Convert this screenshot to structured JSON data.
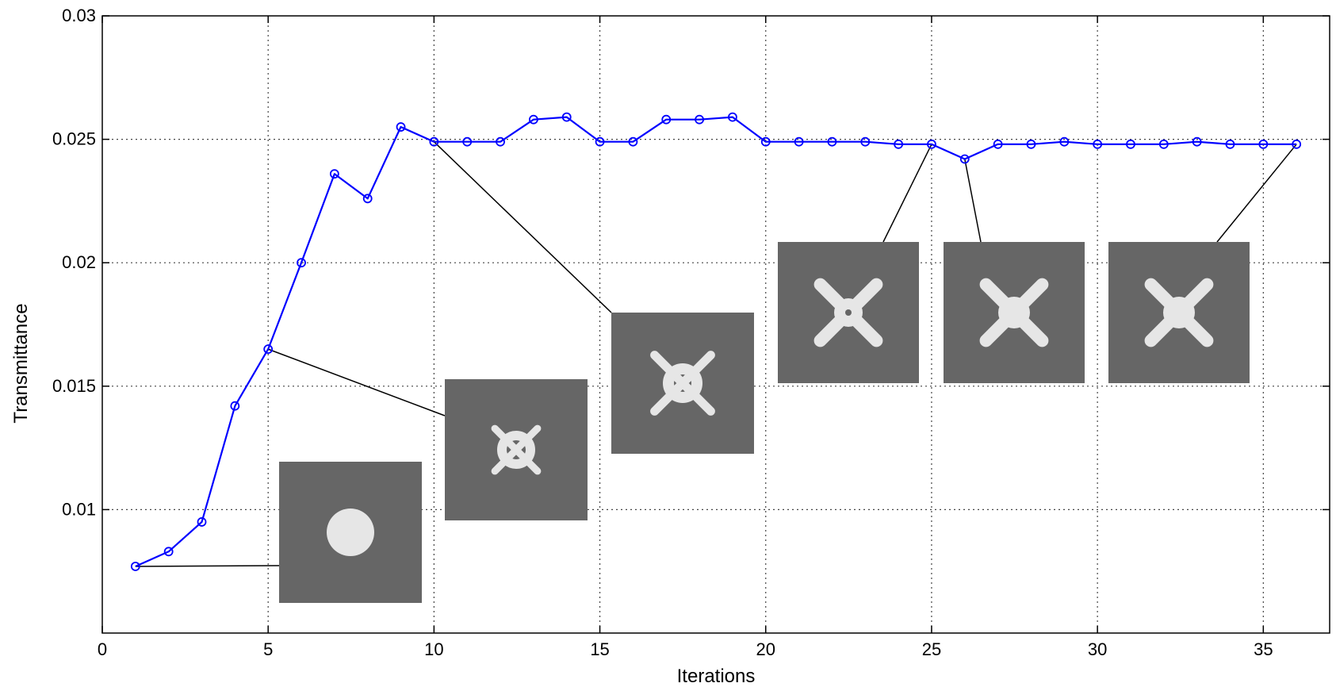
{
  "chart_data": {
    "type": "line",
    "title": "",
    "xlabel": "Iterations",
    "ylabel": "Transmittance",
    "xlim": [
      0,
      37
    ],
    "ylim": [
      0.005,
      0.03
    ],
    "xticks": [
      0,
      5,
      10,
      15,
      20,
      25,
      30,
      35
    ],
    "yticks": [
      0.01,
      0.015,
      0.02,
      0.025,
      0.03
    ],
    "xtick_labels": [
      "0",
      "5",
      "10",
      "15",
      "20",
      "25",
      "30",
      "35"
    ],
    "ytick_labels": [
      "0.01",
      "0.015",
      "0.02",
      "0.025",
      "0.03"
    ],
    "grid": true,
    "legend": "none",
    "series": [
      {
        "color": "#0000ff",
        "marker": "circle",
        "x": [
          1,
          2,
          3,
          4,
          5,
          6,
          7,
          8,
          9,
          10,
          11,
          12,
          13,
          14,
          15,
          16,
          17,
          18,
          19,
          20,
          21,
          22,
          23,
          24,
          25,
          26,
          27,
          28,
          29,
          30,
          31,
          32,
          33,
          34,
          35,
          36
        ],
        "y": [
          0.0077,
          0.0083,
          0.0095,
          0.0142,
          0.0165,
          0.02,
          0.0236,
          0.0226,
          0.0255,
          0.0249,
          0.0249,
          0.0249,
          0.0258,
          0.0259,
          0.0249,
          0.0249,
          0.0258,
          0.0258,
          0.0259,
          0.0249,
          0.0249,
          0.0249,
          0.0249,
          0.0248,
          0.0248,
          0.0242,
          0.0248,
          0.0248,
          0.0249,
          0.0248,
          0.0248,
          0.0248,
          0.0249,
          0.0248,
          0.0248,
          0.0248
        ]
      }
    ],
    "annotations": [
      {
        "iteration": 1,
        "shape": "circle"
      },
      {
        "iteration": 5,
        "shape": "ring-cross"
      },
      {
        "iteration": 10,
        "shape": "ring-star"
      },
      {
        "iteration": 25,
        "shape": "cross-hole"
      },
      {
        "iteration": 26,
        "shape": "cross"
      },
      {
        "iteration": 36,
        "shape": "cross"
      }
    ],
    "colors": {
      "line": "#0000ff",
      "inset_background": "#666666",
      "inset_shape": "#e6e6e6",
      "grid": "#444444"
    }
  }
}
